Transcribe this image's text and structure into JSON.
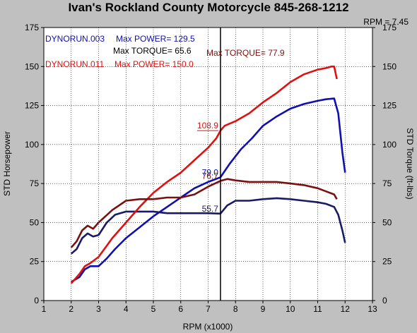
{
  "title": "Ivan's Rockland County Motorcycle  845-268-1212",
  "cursor_readout": "RPM = 7.45",
  "chart_data": {
    "type": "line",
    "xlabel": "RPM (x1000)",
    "ylabel_left": "STD Horsepower",
    "ylabel_right": "STD Torque (ft-lbs)",
    "xlim": [
      1,
      13
    ],
    "ylim": [
      0,
      175
    ],
    "xticks": [
      1,
      2,
      3,
      4,
      5,
      6,
      7,
      8,
      9,
      10,
      11,
      12,
      13
    ],
    "yticks": [
      0,
      25,
      50,
      75,
      100,
      125,
      150,
      175
    ],
    "grid": true,
    "cursor_x": 7.45,
    "legend": [
      {
        "run": "DYNORUN.003",
        "power_label": "Max POWER= 129.5",
        "torque_label": "Max TORQUE= 65.6",
        "color": "#1010b0"
      },
      {
        "run": "DYNORUN.011",
        "power_label": "Max POWER= 150.0",
        "torque_label": "Max TORQUE= 77.9",
        "color": "#e01010"
      }
    ],
    "series": [
      {
        "color": "#1010b0",
        "x": [
          2.0,
          2.3,
          2.5,
          2.7,
          3.0,
          3.3,
          3.6,
          4.0,
          4.5,
          5.0,
          5.5,
          6.0,
          6.5,
          7.0,
          7.45,
          7.8,
          8.2,
          8.6,
          9.0,
          9.5,
          10.0,
          10.5,
          11.0,
          11.3,
          11.6,
          11.75,
          11.9,
          12.0
        ],
        "y": [
          12,
          15,
          20,
          22,
          22,
          27,
          33,
          40,
          47,
          54,
          60,
          66,
          72,
          76,
          79,
          88,
          97,
          104,
          112,
          118,
          123,
          126,
          128,
          129,
          129.5,
          120,
          95,
          82
        ]
      },
      {
        "color": "#1a1a66",
        "x": [
          2.0,
          2.2,
          2.4,
          2.6,
          2.8,
          3.0,
          3.3,
          3.6,
          4.0,
          4.5,
          5.0,
          5.5,
          6.0,
          6.5,
          7.0,
          7.45,
          7.7,
          8.0,
          8.5,
          9.0,
          9.5,
          10.0,
          10.5,
          11.0,
          11.3,
          11.6,
          11.75,
          11.9,
          12.0
        ],
        "y": [
          30,
          33,
          40,
          43,
          41,
          42,
          50,
          55,
          57,
          57,
          57,
          56,
          56,
          56,
          56,
          55.7,
          61,
          64,
          64,
          65,
          65.6,
          65,
          64,
          63,
          62,
          60,
          55,
          45,
          37
        ]
      },
      {
        "color": "#e01010",
        "x": [
          2.0,
          2.3,
          2.5,
          2.7,
          3.0,
          3.5,
          4.0,
          4.5,
          5.0,
          5.5,
          6.0,
          6.5,
          7.0,
          7.3,
          7.45,
          7.6,
          8.0,
          8.5,
          9.0,
          9.5,
          10.0,
          10.5,
          11.0,
          11.3,
          11.5,
          11.6,
          11.7
        ],
        "y": [
          11,
          17,
          22,
          24,
          28,
          40,
          50,
          60,
          69,
          76,
          82,
          90,
          98,
          104,
          108.9,
          112,
          115,
          120,
          127,
          133,
          140,
          145,
          148,
          149,
          150,
          150,
          142
        ]
      },
      {
        "color": "#7a1010",
        "x": [
          2.0,
          2.2,
          2.4,
          2.6,
          2.8,
          3.0,
          3.5,
          4.0,
          4.5,
          5.0,
          5.5,
          6.0,
          6.5,
          7.0,
          7.45,
          7.7,
          8.0,
          8.5,
          9.0,
          9.5,
          10.0,
          10.5,
          11.0,
          11.3,
          11.6,
          11.7
        ],
        "y": [
          34,
          38,
          45,
          48,
          46,
          50,
          58,
          64,
          65,
          65,
          66,
          66,
          68,
          73,
          76.7,
          77.9,
          77,
          76,
          76,
          76,
          75,
          74,
          72,
          70,
          68,
          65
        ]
      }
    ],
    "annotations": [
      {
        "x": 7.45,
        "y": 108.9,
        "text": "108.9",
        "color": "#e01010"
      },
      {
        "x": 7.45,
        "y": 79.0,
        "text": "79.0",
        "color": "#1010b0"
      },
      {
        "x": 7.45,
        "y": 76.7,
        "text": "76.7",
        "color": "#7a1010"
      },
      {
        "x": 7.45,
        "y": 55.7,
        "text": "55.7",
        "color": "#1a1a66"
      }
    ]
  }
}
